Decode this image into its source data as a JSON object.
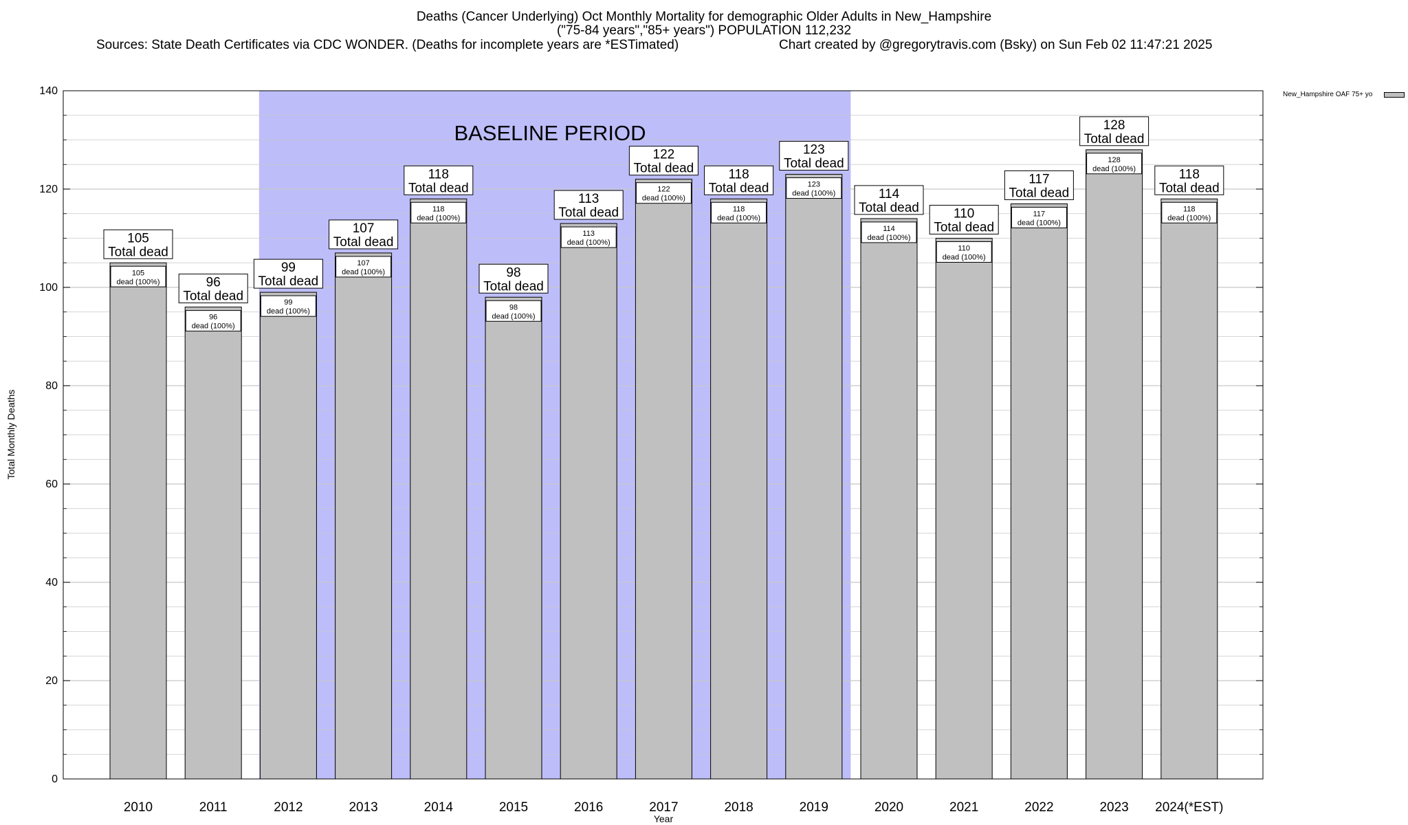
{
  "chart_data": {
    "type": "bar",
    "title": "Deaths (Cancer Underlying) Oct Monthly Mortality for demographic Older Adults in New_Hampshire",
    "subtitle": "(\"75-84 years\",\"85+ years\") POPULATION 112,232",
    "source_line": "Sources: State Death Certificates via CDC WONDER. (Deaths for incomplete years are *ESTimated)",
    "credit_line": "Chart created by @gregorytravis.com (Bsky) on Sun Feb 02 11:47:21 2025",
    "xlabel": "Year",
    "ylabel": "Total Monthly Deaths",
    "ylim": [
      0,
      140
    ],
    "yticks": [
      0,
      20,
      40,
      60,
      80,
      100,
      120,
      140
    ],
    "grid": true,
    "legend_position": "top-right",
    "categories": [
      "2010",
      "2011",
      "2012",
      "2013",
      "2014",
      "2015",
      "2016",
      "2017",
      "2018",
      "2019",
      "2020",
      "2021",
      "2022",
      "2023",
      "2024(*EST)"
    ],
    "series": [
      {
        "name": "New_Hampshire OAF 75+ yo",
        "values": [
          105,
          96,
          99,
          107,
          118,
          98,
          113,
          122,
          118,
          123,
          114,
          110,
          117,
          128,
          118
        ]
      }
    ],
    "total_label_suffix": "Total dead",
    "inner_label_suffix": "dead (100%)",
    "baseline_period": {
      "label": "BASELINE PERIOD",
      "start_category": "2012",
      "end_category": "2019"
    },
    "colors": {
      "bar": "#c0c0c0",
      "baseline_band": "#bdbdfa",
      "grid": "#c8c8c8"
    }
  }
}
